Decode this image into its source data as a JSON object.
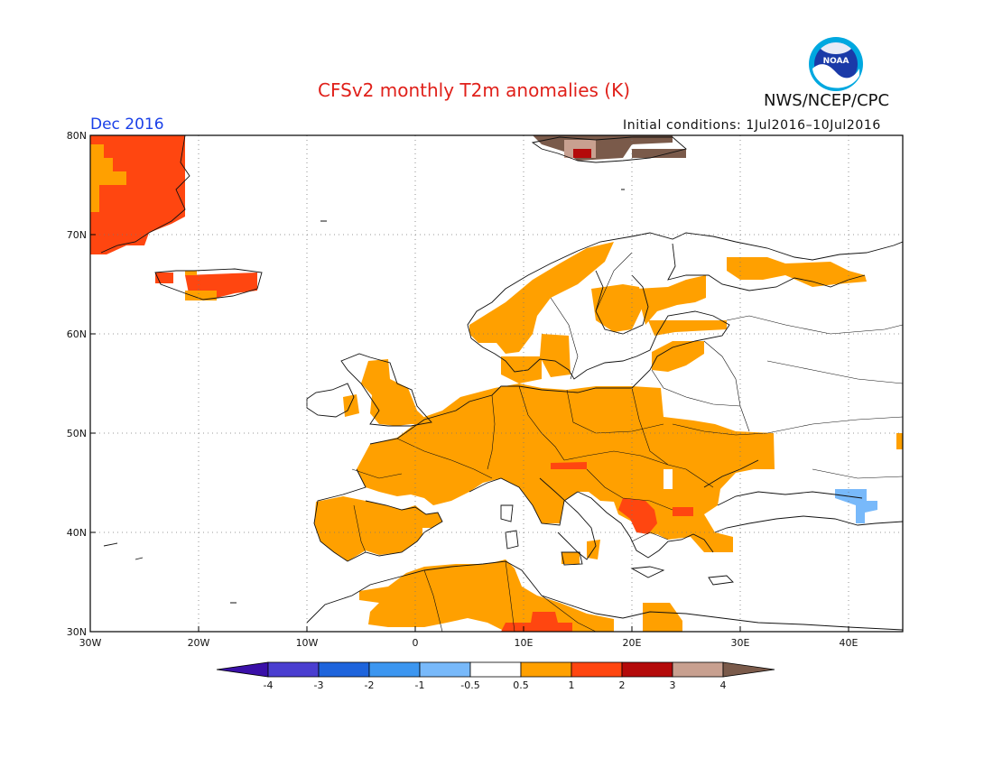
{
  "header": {
    "title": "CFSv2 monthly T2m anomalies (K)",
    "month": "Dec 2016",
    "initial_conditions": "Initial conditions: 1Jul2016–10Jul2016",
    "agency": "NWS/NCEP/CPC",
    "logo_text": "NOAA"
  },
  "map": {
    "variable": "2m temperature anomaly",
    "units": "K",
    "lon_range": [
      -30,
      45
    ],
    "lat_range": [
      30,
      80
    ],
    "lat_ticks": [
      "80N",
      "70N",
      "60N",
      "50N",
      "40N",
      "30N"
    ],
    "lon_ticks": [
      "30W",
      "20W",
      "10W",
      "0",
      "10E",
      "20E",
      "30E",
      "40E"
    ],
    "grid": "dotted"
  },
  "legend": {
    "labels": [
      "-4",
      "-3",
      "-2",
      "-1",
      "-0.5",
      "0.5",
      "1",
      "2",
      "3",
      "4"
    ],
    "colors": [
      "#3a10a8",
      "#4a3ed0",
      "#1e64dc",
      "#3c96f0",
      "#78b9fa",
      "#ffffff",
      "#ffa000",
      "#ff4610",
      "#b40a0a",
      "#c8a090",
      "#7a5a4a"
    ]
  }
}
